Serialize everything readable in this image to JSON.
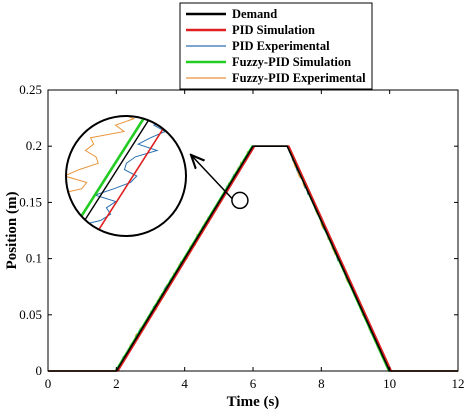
{
  "chart_data": {
    "type": "line",
    "title": "",
    "xlabel": "Time (s)",
    "ylabel": "Position (m)",
    "xlim": [
      0,
      12
    ],
    "ylim": [
      0,
      0.25
    ],
    "xticks": [
      "0",
      "2",
      "4",
      "6",
      "8",
      "10",
      "12"
    ],
    "yticks": [
      "0",
      "0.05",
      "0.1",
      "0.15",
      "0.2",
      "0.25"
    ],
    "grid": false,
    "legend_position": "top-center",
    "series": [
      {
        "name": "Demand",
        "color": "#000000",
        "x": [
          0,
          2,
          6,
          7,
          10,
          12
        ],
        "y": [
          0,
          0,
          0.2,
          0.2,
          0,
          0
        ]
      },
      {
        "name": "PID Simulation",
        "color": "#e02020",
        "x": [
          0,
          2.05,
          6.05,
          7.05,
          10.05,
          12
        ],
        "y": [
          0,
          0,
          0.2,
          0.2,
          0,
          0
        ]
      },
      {
        "name": "PID Experimental",
        "color": "#2a6fb0",
        "x": [
          0,
          2,
          6,
          7,
          10,
          12
        ],
        "y": [
          0,
          0,
          0.2,
          0.2,
          0,
          0
        ]
      },
      {
        "name": "Fuzzy-PID Simulation",
        "color": "#22cc22",
        "x": [
          0,
          1.97,
          5.97,
          7.0,
          9.97,
          12
        ],
        "y": [
          0,
          0,
          0.2,
          0.2,
          0,
          0
        ]
      },
      {
        "name": "Fuzzy-PID Experimental",
        "color": "#e8953a",
        "x": [
          0,
          2,
          6,
          7,
          10,
          12
        ],
        "y": [
          0,
          0,
          0.2,
          0.2,
          0,
          0
        ]
      }
    ],
    "inset": {
      "type": "zoom",
      "focus_x": 5.5,
      "focus_y": 0.15
    }
  }
}
